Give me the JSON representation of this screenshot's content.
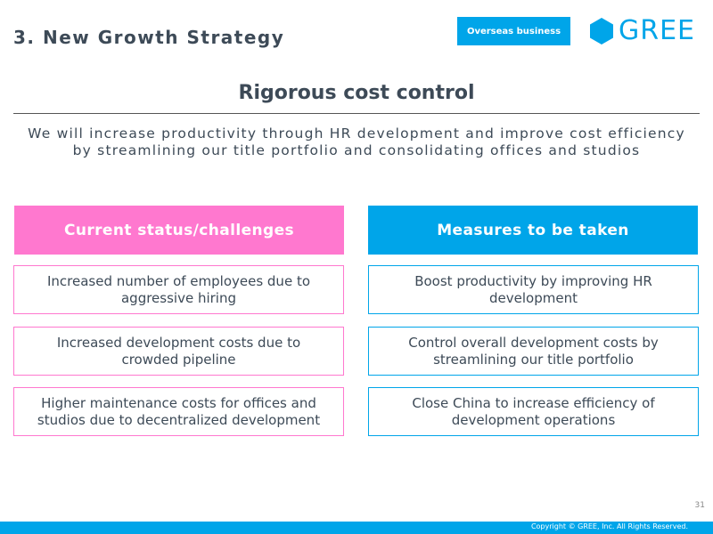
{
  "header": {
    "section_title": "3. New Growth Strategy",
    "badge": "Overseas business",
    "logo_text": "GREE"
  },
  "headline": "Rigorous cost control",
  "subtitle": {
    "line1": "We will increase productivity through HR development and improve cost efficiency",
    "line2": "by streamlining our title portfolio and consolidating offices and studios"
  },
  "columns": {
    "left": {
      "header": "Current status/challenges",
      "items": [
        [
          "Increased number of employees due to",
          "aggressive hiring"
        ],
        [
          "Increased development costs due to",
          "crowded pipeline"
        ],
        [
          "Higher maintenance costs for offices and",
          "studios due to decentralized development"
        ]
      ]
    },
    "right": {
      "header": "Measures to be taken",
      "items": [
        [
          "Boost productivity by improving HR",
          "development"
        ],
        [
          "Control overall development costs by",
          "streamlining our title portfolio"
        ],
        [
          "Close China to increase efficiency of",
          "development operations"
        ]
      ]
    }
  },
  "colors": {
    "pink": "#ff78cf",
    "blue": "#00a5e9",
    "text": "#3d4a57"
  },
  "page_number": "31",
  "copyright": "Copyright © GREE, Inc. All Rights Reserved."
}
